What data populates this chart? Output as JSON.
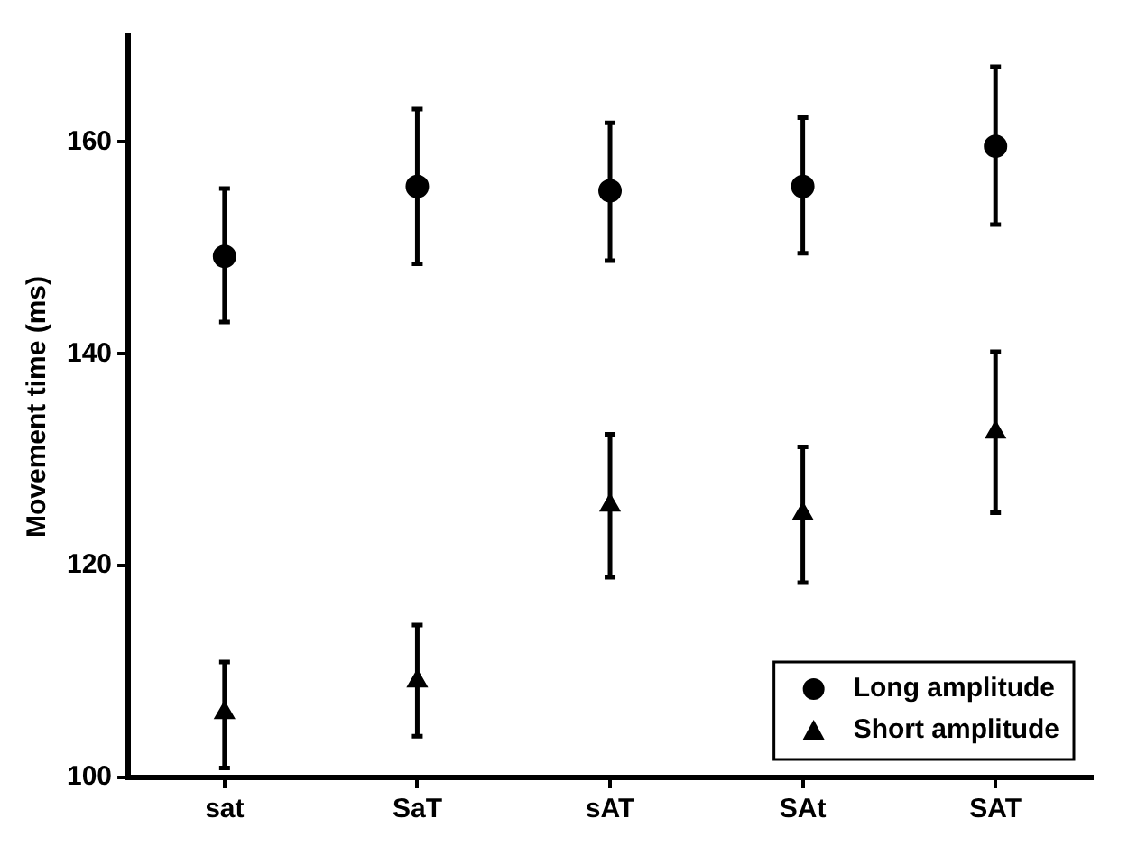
{
  "chart_data": {
    "type": "scatter",
    "ylabel": "Movement time (ms)",
    "categories": [
      "sat",
      "SaT",
      "sAT",
      "SAt",
      "SAT"
    ],
    "series": [
      {
        "name": "Long amplitude",
        "color": "#000000",
        "marker": "circle",
        "values": [
          149.2,
          155.8,
          155.4,
          155.8,
          159.6
        ],
        "errors": [
          [
            143.0,
            155.6
          ],
          [
            148.5,
            163.1
          ],
          [
            148.8,
            161.8
          ],
          [
            149.5,
            162.3
          ],
          [
            152.2,
            167.1
          ]
        ]
      },
      {
        "name": "Short amplitude",
        "color": "#000000",
        "marker": "triangle",
        "values": [
          106.1,
          109.1,
          125.7,
          124.9,
          132.6
        ],
        "errors": [
          [
            100.9,
            110.9
          ],
          [
            103.9,
            114.4
          ],
          [
            118.9,
            132.4
          ],
          [
            118.4,
            131.2
          ],
          [
            125.0,
            140.2
          ]
        ]
      }
    ],
    "ylim": [
      100,
      170
    ],
    "yticks": [
      100,
      120,
      140,
      160
    ],
    "grid": false,
    "legend": "bottom right"
  }
}
